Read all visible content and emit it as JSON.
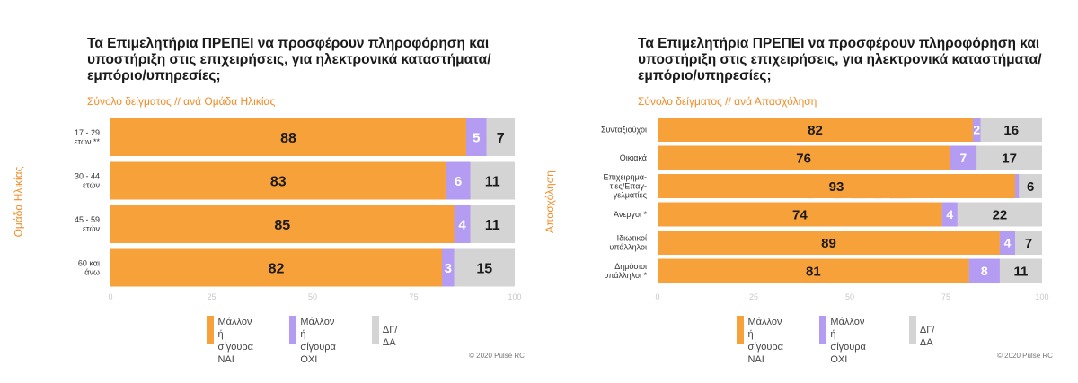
{
  "colors": {
    "yes": "#f7a13b",
    "no": "#b39cf1",
    "dk": "#d4d4d4"
  },
  "legend": {
    "yes": "Μάλλον ή\nσίγουρα ΝΑΙ",
    "no": "Μάλλον ή\nσίγουρα ΟΧΙ",
    "dk": "ΔΓ/ΔΑ"
  },
  "copyright": "© 2020 Pulse RC",
  "watermark": "PULSE",
  "panels": [
    {
      "title": "Τα Επιμελητήρια ΠΡΕΠΕΙ να προσφέρουν πληροφόρηση και υποστήριξη στις επιχειρήσεις, για ηλεκτρονικά καταστήματα/εμπόριο/υπηρεσίες;",
      "subtitle": "Σύνολο δείγματος // ανά Ομάδα Ηλικίας",
      "ylabel": "Ομάδα Ηλικίας"
    },
    {
      "title": "Τα Επιμελητήρια ΠΡΕΠΕΙ να προσφέρουν πληροφόρηση και υποστήριξη στις επιχειρήσεις, για ηλεκτρονικά καταστήματα/εμπόριο/υπηρεσίες;",
      "subtitle": "Σύνολο δείγματος // ανά Απασχόληση",
      "ylabel": "Απασχόληση"
    }
  ],
  "chart_data": [
    {
      "type": "bar",
      "orientation": "horizontal",
      "stacked": true,
      "categories": [
        "17 - 29\nετών **",
        "30 - 44\nετών",
        "45 - 59\nετών",
        "60 και\nάνω"
      ],
      "series": [
        {
          "name": "Μάλλον ή σίγουρα ΝΑΙ",
          "values": [
            88,
            83,
            85,
            82
          ]
        },
        {
          "name": "Μάλλον ή σίγουρα ΟΧΙ",
          "values": [
            5,
            6,
            4,
            3
          ]
        },
        {
          "name": "ΔΓ/ΔΑ",
          "values": [
            7,
            11,
            11,
            15
          ]
        }
      ],
      "xlim": [
        0,
        100
      ],
      "xticks": [
        "0",
        "25",
        "50",
        "75",
        "100"
      ],
      "legend": "bottom"
    },
    {
      "type": "bar",
      "orientation": "horizontal",
      "stacked": true,
      "categories": [
        "Συνταξιούχοι",
        "Οικιακά",
        "Επιχειρημα-\nτίες/Επαγ-\nγελματίες",
        "Άνεργοι *",
        "Ιδιωτικοί\nυπάλληλοι",
        "Δημόσιοι\nυπάλληλοι *"
      ],
      "series": [
        {
          "name": "Μάλλον ή σίγουρα ΝΑΙ",
          "values": [
            82,
            76,
            93,
            74,
            89,
            81
          ]
        },
        {
          "name": "Μάλλον ή σίγουρα ΟΧΙ",
          "values": [
            2,
            7,
            1,
            4,
            4,
            8
          ]
        },
        {
          "name": "ΔΓ/ΔΑ",
          "values": [
            16,
            17,
            6,
            22,
            7,
            11
          ]
        }
      ],
      "value_labels": [
        [
          "82",
          "2",
          "16"
        ],
        [
          "76",
          "7",
          "17"
        ],
        [
          "93",
          "",
          "6"
        ],
        [
          "74",
          "4",
          "22"
        ],
        [
          "89",
          "4",
          "7"
        ],
        [
          "81",
          "8",
          "11"
        ]
      ],
      "xlim": [
        0,
        100
      ],
      "xticks": [
        "0",
        "25",
        "50",
        "75",
        "100"
      ],
      "legend": "bottom"
    }
  ]
}
